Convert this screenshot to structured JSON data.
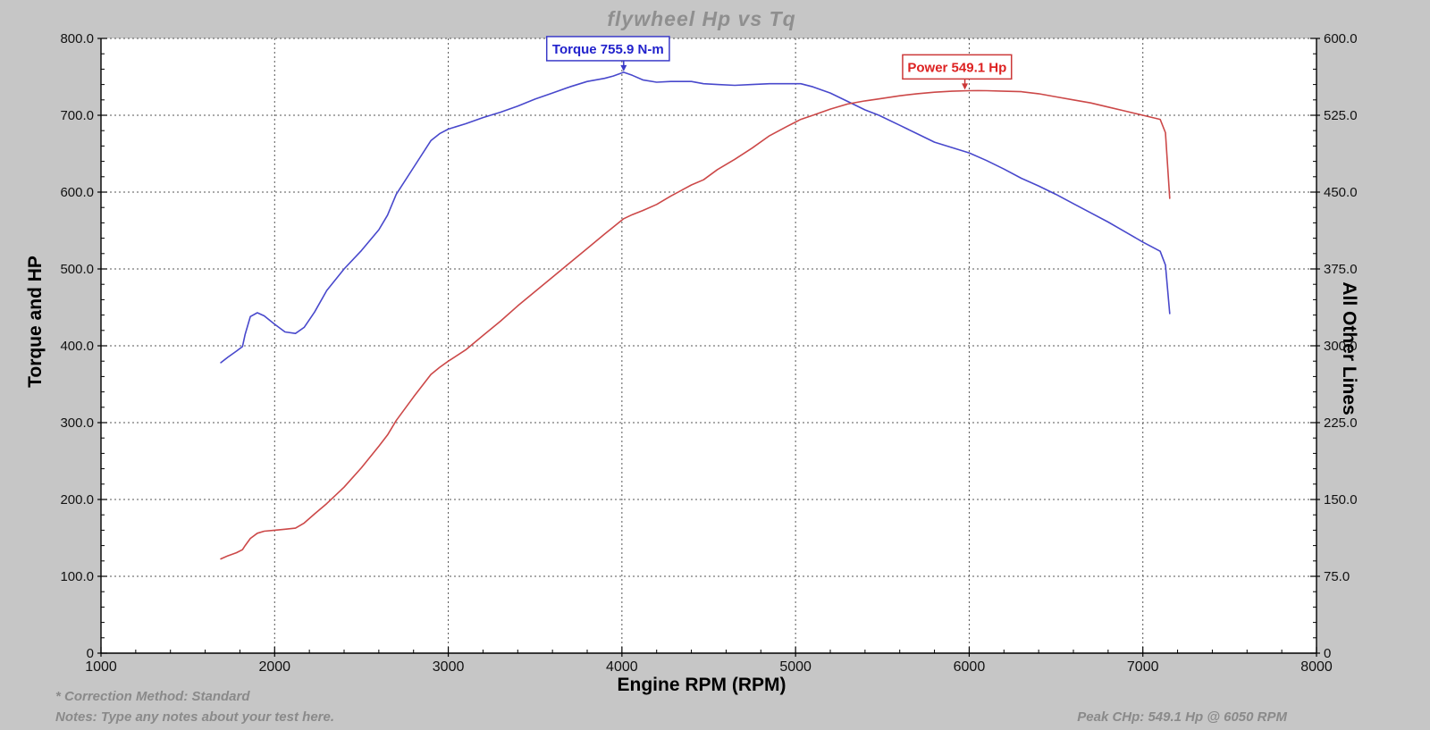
{
  "title": "flywheel Hp vs Tq",
  "footer": {
    "correction": "* Correction Method: Standard",
    "notes": "Notes: Type any notes about your test here.",
    "peak": "Peak CHp: 549.1 Hp @ 6050 RPM"
  },
  "colors": {
    "background": "#c6c6c6",
    "plot_background": "#ffffff",
    "grid": "#555555",
    "axis": "#000000",
    "tick_text": "#111111",
    "muted_text": "#8a8a8a",
    "torque_line": "#4848cc",
    "power_line": "#cc4848",
    "torque_annotation_text": "#2222cc",
    "power_annotation_text": "#dd2222"
  },
  "chart_data": {
    "type": "line",
    "title": "flywheel Hp vs Tq",
    "xlabel": "Engine RPM (RPM)",
    "ylabel_left": "Torque and HP",
    "ylabel_right": "All Other Lines",
    "x_range": [
      1000,
      8000
    ],
    "x_minor_step": 200,
    "x_major_ticks": [
      {
        "v": 1000,
        "label": "1000"
      },
      {
        "v": 2000,
        "label": "2000"
      },
      {
        "v": 3000,
        "label": "3000"
      },
      {
        "v": 4000,
        "label": "4000"
      },
      {
        "v": 5000,
        "label": "5000"
      },
      {
        "v": 6000,
        "label": "6000"
      },
      {
        "v": 7000,
        "label": "7000"
      },
      {
        "v": 8000,
        "label": "8000"
      }
    ],
    "left_range": [
      0,
      800
    ],
    "left_minor_step": 20,
    "left_major_ticks": [
      {
        "v": 0,
        "label": "0"
      },
      {
        "v": 100,
        "label": "100.0"
      },
      {
        "v": 200,
        "label": "200.0"
      },
      {
        "v": 300,
        "label": "300.0"
      },
      {
        "v": 400,
        "label": "400.0"
      },
      {
        "v": 500,
        "label": "500.0"
      },
      {
        "v": 600,
        "label": "600.0"
      },
      {
        "v": 700,
        "label": "700.0"
      },
      {
        "v": 800,
        "label": "800.0"
      }
    ],
    "right_range": [
      0,
      600
    ],
    "right_minor_step": 15,
    "right_major_ticks": [
      {
        "v": 0,
        "label": "0"
      },
      {
        "v": 75,
        "label": "75.0"
      },
      {
        "v": 150,
        "label": "150.0"
      },
      {
        "v": 225,
        "label": "225.0"
      },
      {
        "v": 300,
        "label": "300.0"
      },
      {
        "v": 375,
        "label": "375.0"
      },
      {
        "v": 450,
        "label": "450.0"
      },
      {
        "v": 525,
        "label": "525.0"
      },
      {
        "v": 600,
        "label": "600.0"
      }
    ],
    "grid": true,
    "legend_position": "none",
    "series": [
      {
        "name": "Torque",
        "unit": "N-m",
        "axis": "left",
        "color": "#4848cc",
        "peak": {
          "rpm": 4010,
          "value": 755.9
        },
        "points": [
          [
            1690,
            378
          ],
          [
            1730,
            385
          ],
          [
            1780,
            393
          ],
          [
            1815,
            399
          ],
          [
            1830,
            415
          ],
          [
            1860,
            438
          ],
          [
            1900,
            443
          ],
          [
            1940,
            439
          ],
          [
            2000,
            428
          ],
          [
            2060,
            418
          ],
          [
            2120,
            416
          ],
          [
            2170,
            424
          ],
          [
            2230,
            444
          ],
          [
            2300,
            472
          ],
          [
            2400,
            500
          ],
          [
            2500,
            524
          ],
          [
            2600,
            551
          ],
          [
            2650,
            570
          ],
          [
            2700,
            597
          ],
          [
            2800,
            632
          ],
          [
            2900,
            667
          ],
          [
            2950,
            676
          ],
          [
            3000,
            682
          ],
          [
            3100,
            689
          ],
          [
            3200,
            697
          ],
          [
            3300,
            704
          ],
          [
            3400,
            712
          ],
          [
            3500,
            721
          ],
          [
            3600,
            729
          ],
          [
            3700,
            737
          ],
          [
            3800,
            744
          ],
          [
            3900,
            748
          ],
          [
            3950,
            751
          ],
          [
            4010,
            755.9
          ],
          [
            4060,
            752
          ],
          [
            4120,
            746
          ],
          [
            4200,
            743
          ],
          [
            4280,
            744
          ],
          [
            4400,
            744
          ],
          [
            4470,
            741
          ],
          [
            4550,
            740
          ],
          [
            4650,
            739
          ],
          [
            4750,
            740
          ],
          [
            4850,
            741
          ],
          [
            4950,
            741
          ],
          [
            5030,
            741
          ],
          [
            5100,
            737
          ],
          [
            5200,
            729
          ],
          [
            5300,
            718
          ],
          [
            5400,
            707
          ],
          [
            5480,
            700
          ],
          [
            5600,
            687
          ],
          [
            5700,
            676
          ],
          [
            5800,
            665
          ],
          [
            5900,
            658
          ],
          [
            6000,
            651
          ],
          [
            6100,
            641
          ],
          [
            6200,
            630
          ],
          [
            6300,
            618
          ],
          [
            6400,
            608
          ],
          [
            6500,
            597
          ],
          [
            6600,
            585
          ],
          [
            6700,
            573
          ],
          [
            6800,
            561
          ],
          [
            6900,
            548
          ],
          [
            7000,
            535
          ],
          [
            7100,
            523
          ],
          [
            7130,
            505
          ],
          [
            7155,
            442
          ]
        ]
      },
      {
        "name": "Power",
        "unit": "Hp",
        "axis": "right",
        "color": "#cc4848",
        "peak": {
          "rpm": 6050,
          "value": 549.1
        },
        "points": [
          [
            1690,
            92
          ],
          [
            1730,
            95
          ],
          [
            1780,
            98
          ],
          [
            1815,
            101
          ],
          [
            1830,
            105
          ],
          [
            1860,
            112
          ],
          [
            1900,
            117
          ],
          [
            1940,
            119
          ],
          [
            2000,
            120
          ],
          [
            2060,
            121
          ],
          [
            2120,
            122
          ],
          [
            2170,
            127
          ],
          [
            2230,
            136
          ],
          [
            2300,
            146
          ],
          [
            2400,
            162
          ],
          [
            2500,
            181
          ],
          [
            2600,
            202
          ],
          [
            2650,
            213
          ],
          [
            2700,
            227
          ],
          [
            2800,
            250
          ],
          [
            2900,
            272
          ],
          [
            2950,
            279
          ],
          [
            3000,
            285
          ],
          [
            3100,
            296
          ],
          [
            3200,
            310
          ],
          [
            3300,
            324
          ],
          [
            3400,
            339
          ],
          [
            3500,
            353
          ],
          [
            3600,
            367
          ],
          [
            3700,
            381
          ],
          [
            3800,
            395
          ],
          [
            3900,
            409
          ],
          [
            4010,
            424
          ],
          [
            4060,
            428
          ],
          [
            4120,
            432
          ],
          [
            4200,
            438
          ],
          [
            4280,
            446
          ],
          [
            4400,
            457
          ],
          [
            4470,
            462
          ],
          [
            4550,
            472
          ],
          [
            4650,
            482
          ],
          [
            4750,
            493
          ],
          [
            4850,
            505
          ],
          [
            4950,
            514
          ],
          [
            5030,
            521
          ],
          [
            5100,
            525
          ],
          [
            5200,
            531
          ],
          [
            5300,
            536
          ],
          [
            5400,
            539
          ],
          [
            5480,
            541
          ],
          [
            5600,
            544
          ],
          [
            5700,
            546
          ],
          [
            5800,
            547.5
          ],
          [
            5900,
            548.5
          ],
          [
            6000,
            549
          ],
          [
            6050,
            549.1
          ],
          [
            6100,
            549
          ],
          [
            6200,
            548.5
          ],
          [
            6300,
            548
          ],
          [
            6400,
            546
          ],
          [
            6500,
            543
          ],
          [
            6600,
            540
          ],
          [
            6700,
            537
          ],
          [
            6800,
            533
          ],
          [
            6900,
            529
          ],
          [
            7000,
            525
          ],
          [
            7100,
            521
          ],
          [
            7130,
            508
          ],
          [
            7155,
            444
          ]
        ]
      }
    ],
    "annotations": [
      {
        "text": "Torque 755.9 N-m",
        "axis": "left",
        "anchor_rpm": 4010,
        "anchor_value": 755.9,
        "box_center_rpm": 3920,
        "text_color": "#2222cc",
        "border_color": "#3b3bc8"
      },
      {
        "text": "Power 549.1 Hp",
        "axis": "right",
        "anchor_rpm": 5975,
        "anchor_value": 549.1,
        "box_center_rpm": 5930,
        "text_color": "#dd2222",
        "border_color": "#cc3838"
      }
    ]
  }
}
